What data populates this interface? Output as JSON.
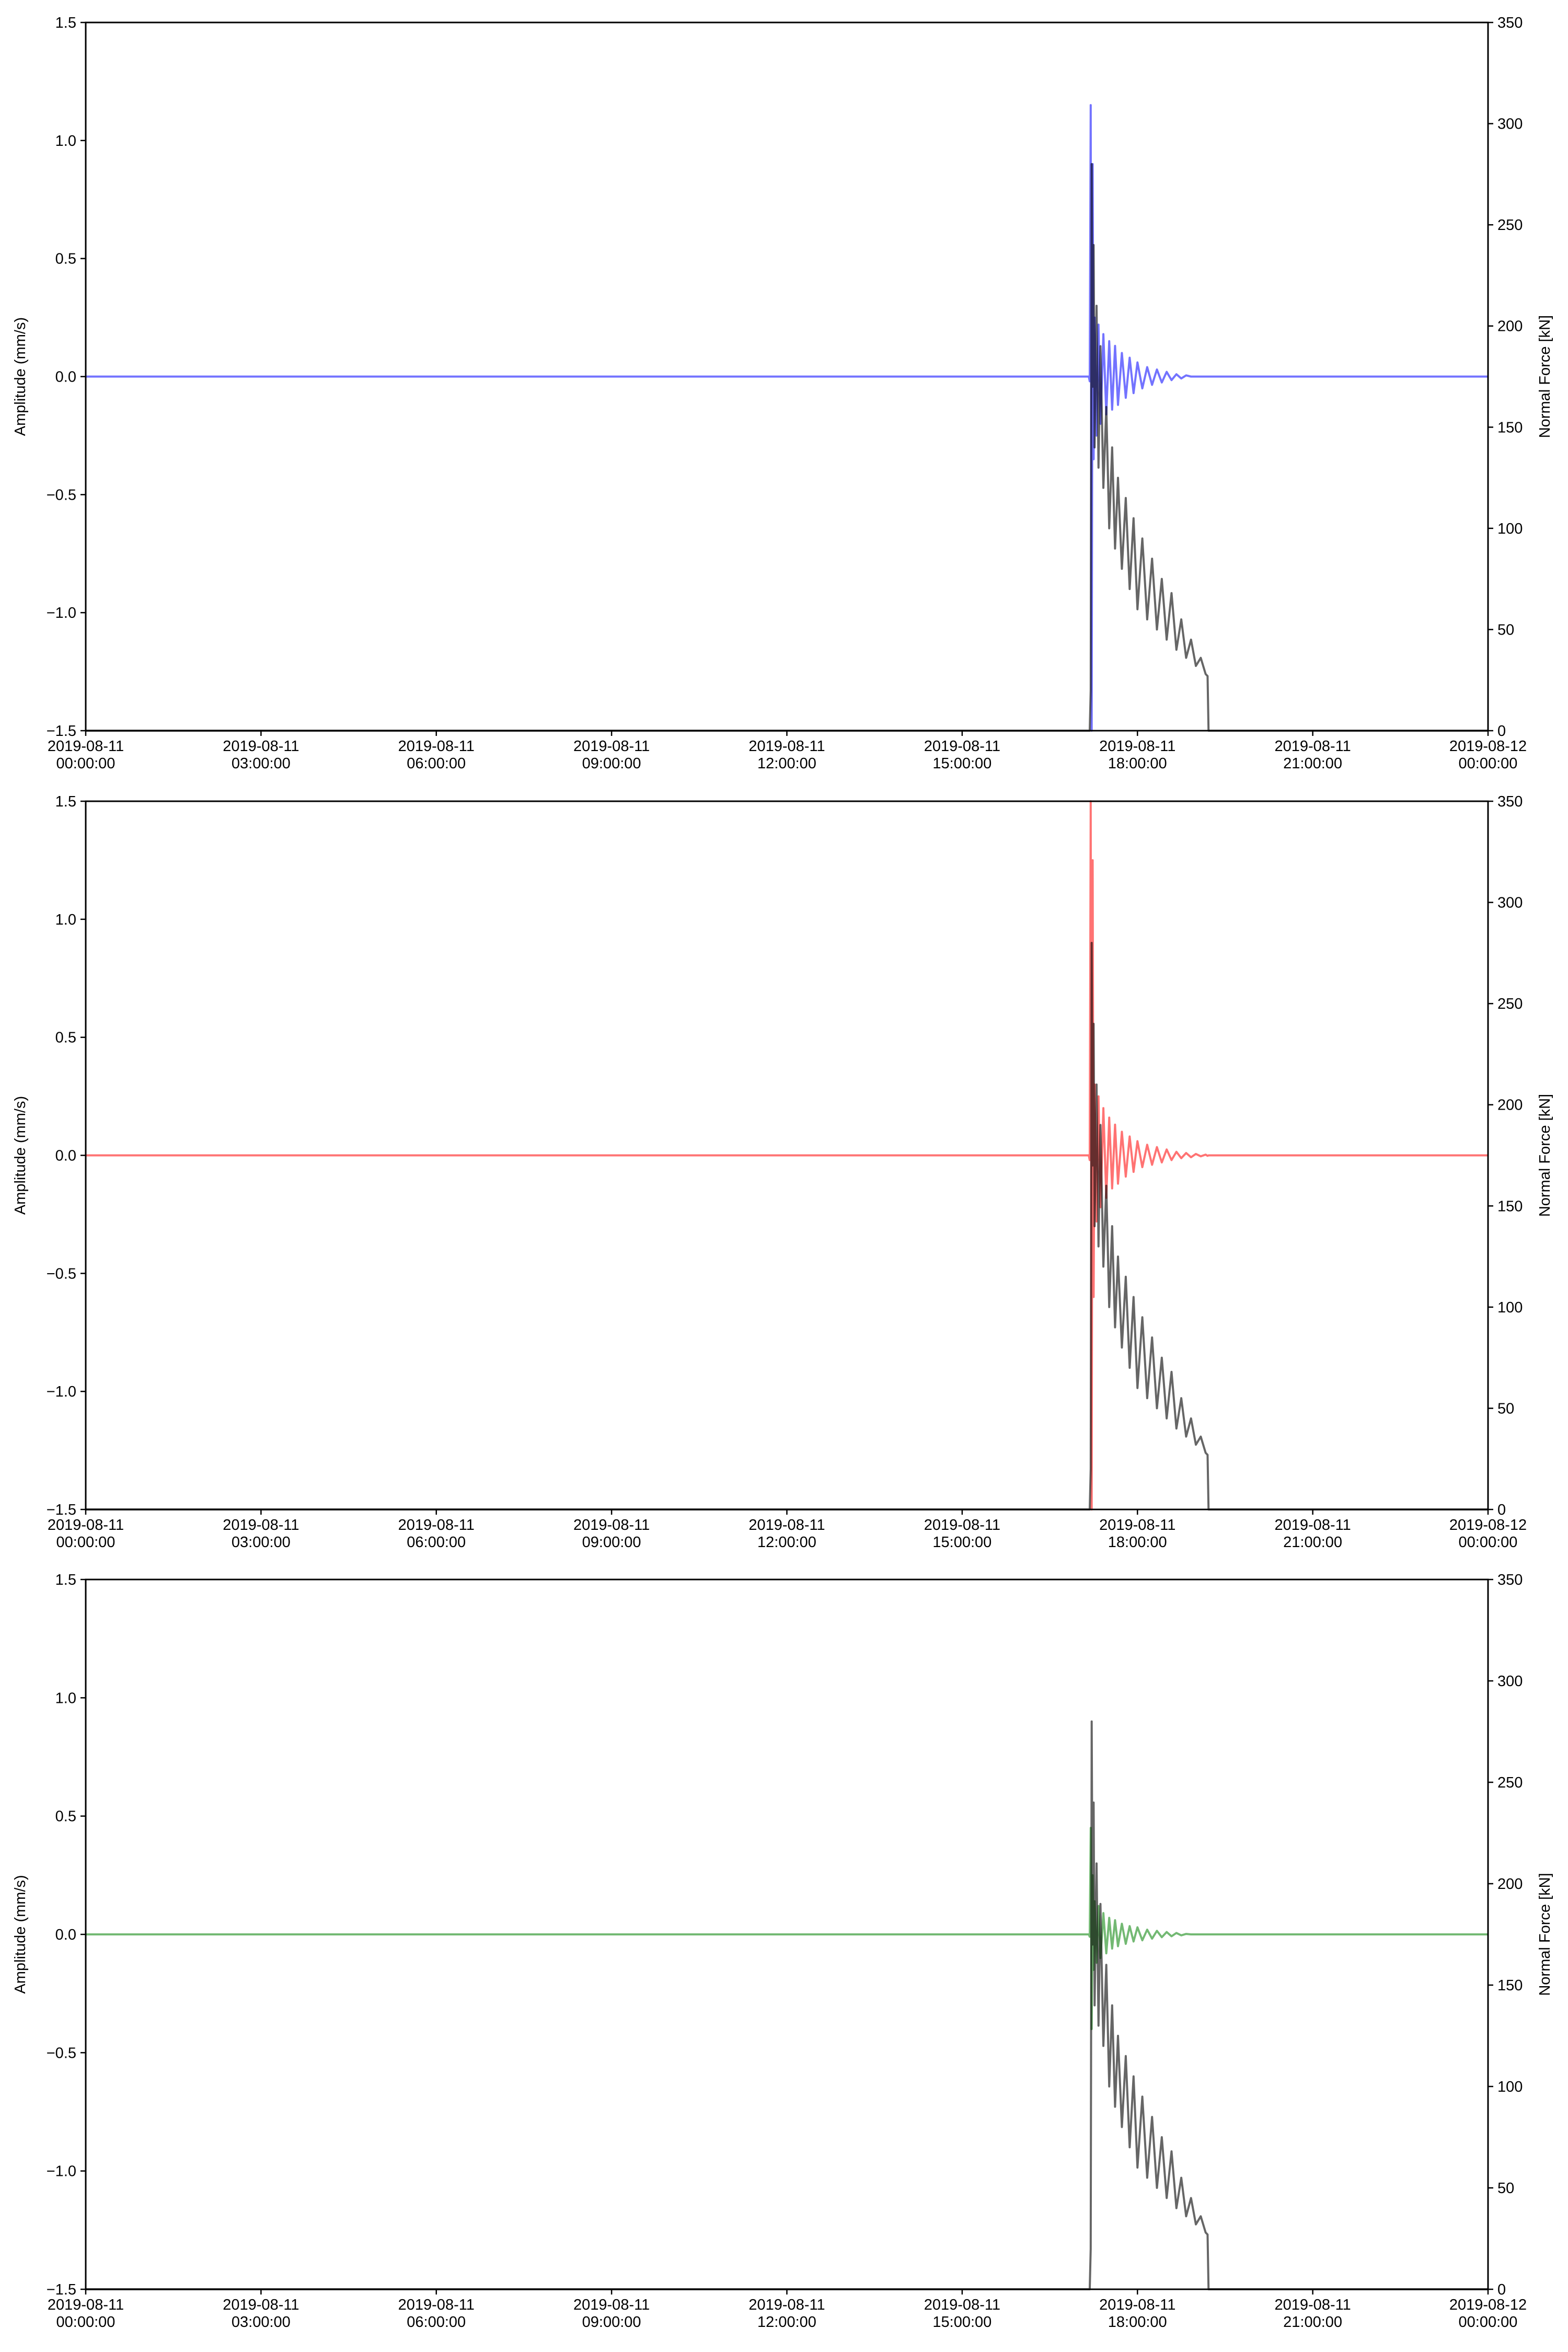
{
  "chart_data": [
    {
      "type": "line",
      "x": [
        "2019-08-11 00:00:00",
        "2019-08-11 03:00:00",
        "2019-08-11 06:00:00",
        "2019-08-11 09:00:00",
        "2019-08-11 12:00:00",
        "2019-08-11 15:00:00",
        "2019-08-11 17:00:00",
        "2019-08-11 17:08:00",
        "2019-08-11 17:10:00",
        "2019-08-11 17:11:00",
        "2019-08-11 17:12:00",
        "2019-08-11 17:13:00",
        "2019-08-11 17:14:00",
        "2019-08-11 17:15:00",
        "2019-08-11 17:16:00",
        "2019-08-11 17:18:00",
        "2019-08-11 17:20:00",
        "2019-08-11 17:22:00",
        "2019-08-11 17:25:00",
        "2019-08-11 17:28:00",
        "2019-08-11 17:31:00",
        "2019-08-11 17:34:00",
        "2019-08-11 17:37:00",
        "2019-08-11 17:40:00",
        "2019-08-11 17:44:00",
        "2019-08-11 17:48:00",
        "2019-08-11 17:52:00",
        "2019-08-11 17:56:00",
        "2019-08-11 18:00:00",
        "2019-08-11 18:05:00",
        "2019-08-11 18:10:00",
        "2019-08-11 18:15:00",
        "2019-08-11 18:20:00",
        "2019-08-11 18:25:00",
        "2019-08-11 18:30:00",
        "2019-08-11 18:35:00",
        "2019-08-11 18:40:00",
        "2019-08-11 18:45:00",
        "2019-08-11 18:50:00",
        "2019-08-11 18:55:00",
        "2019-08-11 19:00:00",
        "2019-08-11 19:05:00",
        "2019-08-11 19:10:00",
        "2019-08-11 19:12:00",
        "2019-08-11 19:13:00",
        "2019-08-11 19:20:00",
        "2019-08-11 19:30:00",
        "2019-08-11 19:45:00",
        "2019-08-11 20:00:00",
        "2019-08-11 21:00:00",
        "2019-08-12 00:00:00"
      ],
      "series": [
        {
          "color": "#0000ff",
          "values": [
            0,
            0,
            0,
            0,
            0,
            0,
            0,
            0,
            0,
            -0.02,
            1.15,
            -1.5,
            0.9,
            -0.35,
            0.25,
            -0.25,
            0.22,
            -0.2,
            0.18,
            -0.16,
            0.15,
            -0.14,
            0.13,
            -0.12,
            0.1,
            -0.09,
            0.08,
            -0.07,
            0.06,
            -0.05,
            0.04,
            -0.035,
            0.03,
            -0.025,
            0.02,
            -0.015,
            0.01,
            -0.008,
            0.005,
            0,
            0,
            0,
            0,
            0,
            0,
            0,
            0,
            0,
            0,
            0,
            0
          ]
        },
        {
          "color": "#000000",
          "axis": "y2",
          "values": [
            0,
            0,
            0,
            0,
            0,
            0,
            0,
            0,
            0,
            0,
            20,
            280,
            170,
            240,
            140,
            210,
            130,
            190,
            120,
            160,
            100,
            140,
            90,
            125,
            80,
            115,
            70,
            105,
            60,
            95,
            55,
            85,
            50,
            75,
            45,
            68,
            40,
            55,
            36,
            45,
            32,
            36,
            28,
            27,
            0,
            0,
            0,
            0,
            0,
            0,
            0
          ]
        }
      ],
      "xlim": [
        "2019-08-11 00:00:00",
        "2019-08-12 00:00:00"
      ],
      "xticks": [
        {
          "value": "2019-08-11 00:00:00",
          "label": "2019-08-11\n00:00:00"
        },
        {
          "value": "2019-08-11 03:00:00",
          "label": "2019-08-11\n03:00:00"
        },
        {
          "value": "2019-08-11 06:00:00",
          "label": "2019-08-11\n06:00:00"
        },
        {
          "value": "2019-08-11 09:00:00",
          "label": "2019-08-11\n09:00:00"
        },
        {
          "value": "2019-08-11 12:00:00",
          "label": "2019-08-11\n12:00:00"
        },
        {
          "value": "2019-08-11 15:00:00",
          "label": "2019-08-11\n15:00:00"
        },
        {
          "value": "2019-08-11 18:00:00",
          "label": "2019-08-11\n18:00:00"
        },
        {
          "value": "2019-08-11 21:00:00",
          "label": "2019-08-11\n21:00:00"
        },
        {
          "value": "2019-08-12 00:00:00",
          "label": "2019-08-12\n00:00:00"
        }
      ],
      "ylabel": "Amplitude (mm/s)",
      "y2label": "Normal Force [kN]",
      "ylim": [
        -1.5,
        1.5
      ],
      "yticks": [
        {
          "value": -1.5,
          "label": "−1.5"
        },
        {
          "value": -1,
          "label": "−1.0"
        },
        {
          "value": -0.5,
          "label": "−0.5"
        },
        {
          "value": 0,
          "label": "0.0"
        },
        0.5,
        {
          "value": 1,
          "label": "1.0"
        },
        1.5
      ],
      "y2lim": [
        0,
        350
      ],
      "y2ticks": [
        0,
        50,
        100,
        150,
        200,
        250,
        300,
        350
      ]
    },
    {
      "type": "line",
      "x": [
        "2019-08-11 00:00:00",
        "2019-08-11 03:00:00",
        "2019-08-11 06:00:00",
        "2019-08-11 09:00:00",
        "2019-08-11 12:00:00",
        "2019-08-11 15:00:00",
        "2019-08-11 17:00:00",
        "2019-08-11 17:08:00",
        "2019-08-11 17:10:00",
        "2019-08-11 17:11:00",
        "2019-08-11 17:12:00",
        "2019-08-11 17:13:00",
        "2019-08-11 17:14:00",
        "2019-08-11 17:15:00",
        "2019-08-11 17:16:00",
        "2019-08-11 17:18:00",
        "2019-08-11 17:20:00",
        "2019-08-11 17:22:00",
        "2019-08-11 17:25:00",
        "2019-08-11 17:28:00",
        "2019-08-11 17:31:00",
        "2019-08-11 17:34:00",
        "2019-08-11 17:37:00",
        "2019-08-11 17:40:00",
        "2019-08-11 17:44:00",
        "2019-08-11 17:48:00",
        "2019-08-11 17:52:00",
        "2019-08-11 17:56:00",
        "2019-08-11 18:00:00",
        "2019-08-11 18:05:00",
        "2019-08-11 18:10:00",
        "2019-08-11 18:15:00",
        "2019-08-11 18:20:00",
        "2019-08-11 18:25:00",
        "2019-08-11 18:30:00",
        "2019-08-11 18:35:00",
        "2019-08-11 18:40:00",
        "2019-08-11 18:45:00",
        "2019-08-11 18:50:00",
        "2019-08-11 18:55:00",
        "2019-08-11 19:00:00",
        "2019-08-11 19:05:00",
        "2019-08-11 19:10:00",
        "2019-08-11 19:12:00",
        "2019-08-11 19:13:00",
        "2019-08-11 19:20:00",
        "2019-08-11 19:30:00",
        "2019-08-11 19:45:00",
        "2019-08-11 20:00:00",
        "2019-08-11 21:00:00",
        "2019-08-12 00:00:00"
      ],
      "series": [
        {
          "color": "#ff0000",
          "values": [
            0,
            0,
            0,
            0,
            0,
            0,
            0,
            0,
            0,
            -0.02,
            1.5,
            -1.5,
            1.25,
            -0.6,
            0.3,
            -0.28,
            0.25,
            -0.22,
            0.2,
            -0.18,
            0.16,
            -0.14,
            0.13,
            -0.12,
            0.1,
            -0.09,
            0.08,
            -0.07,
            0.06,
            -0.05,
            0.045,
            -0.04,
            0.035,
            -0.03,
            0.025,
            -0.02,
            0.015,
            -0.012,
            0.01,
            -0.008,
            0.006,
            -0.004,
            0.003,
            -0.002,
            0,
            0,
            0,
            0,
            0,
            0,
            0
          ]
        },
        {
          "color": "#000000",
          "axis": "y2",
          "values": [
            0,
            0,
            0,
            0,
            0,
            0,
            0,
            0,
            0,
            0,
            20,
            280,
            170,
            240,
            140,
            210,
            130,
            190,
            120,
            160,
            100,
            140,
            90,
            125,
            80,
            115,
            70,
            105,
            60,
            95,
            55,
            85,
            50,
            75,
            45,
            68,
            40,
            55,
            36,
            45,
            32,
            36,
            28,
            27,
            0,
            0,
            0,
            0,
            0,
            0,
            0
          ]
        }
      ],
      "xlim": [
        "2019-08-11 00:00:00",
        "2019-08-12 00:00:00"
      ],
      "xticks": [
        {
          "value": "2019-08-11 00:00:00",
          "label": "2019-08-11\n00:00:00"
        },
        {
          "value": "2019-08-11 03:00:00",
          "label": "2019-08-11\n03:00:00"
        },
        {
          "value": "2019-08-11 06:00:00",
          "label": "2019-08-11\n06:00:00"
        },
        {
          "value": "2019-08-11 09:00:00",
          "label": "2019-08-11\n09:00:00"
        },
        {
          "value": "2019-08-11 12:00:00",
          "label": "2019-08-11\n12:00:00"
        },
        {
          "value": "2019-08-11 15:00:00",
          "label": "2019-08-11\n15:00:00"
        },
        {
          "value": "2019-08-11 18:00:00",
          "label": "2019-08-11\n18:00:00"
        },
        {
          "value": "2019-08-11 21:00:00",
          "label": "2019-08-11\n21:00:00"
        },
        {
          "value": "2019-08-12 00:00:00",
          "label": "2019-08-12\n00:00:00"
        }
      ],
      "ylabel": "Amplitude (mm/s)",
      "y2label": "Normal Force [kN]",
      "ylim": [
        -1.5,
        1.5
      ],
      "yticks": [
        {
          "value": -1.5,
          "label": "−1.5"
        },
        {
          "value": -1,
          "label": "−1.0"
        },
        {
          "value": -0.5,
          "label": "−0.5"
        },
        {
          "value": 0,
          "label": "0.0"
        },
        0.5,
        {
          "value": 1,
          "label": "1.0"
        },
        1.5
      ],
      "y2lim": [
        0,
        350
      ],
      "y2ticks": [
        0,
        50,
        100,
        150,
        200,
        250,
        300,
        350
      ]
    },
    {
      "type": "line",
      "x": [
        "2019-08-11 00:00:00",
        "2019-08-11 03:00:00",
        "2019-08-11 06:00:00",
        "2019-08-11 09:00:00",
        "2019-08-11 12:00:00",
        "2019-08-11 15:00:00",
        "2019-08-11 17:00:00",
        "2019-08-11 17:08:00",
        "2019-08-11 17:10:00",
        "2019-08-11 17:11:00",
        "2019-08-11 17:12:00",
        "2019-08-11 17:13:00",
        "2019-08-11 17:14:00",
        "2019-08-11 17:15:00",
        "2019-08-11 17:16:00",
        "2019-08-11 17:18:00",
        "2019-08-11 17:20:00",
        "2019-08-11 17:22:00",
        "2019-08-11 17:25:00",
        "2019-08-11 17:28:00",
        "2019-08-11 17:31:00",
        "2019-08-11 17:34:00",
        "2019-08-11 17:37:00",
        "2019-08-11 17:40:00",
        "2019-08-11 17:44:00",
        "2019-08-11 17:48:00",
        "2019-08-11 17:52:00",
        "2019-08-11 17:56:00",
        "2019-08-11 18:00:00",
        "2019-08-11 18:05:00",
        "2019-08-11 18:10:00",
        "2019-08-11 18:15:00",
        "2019-08-11 18:20:00",
        "2019-08-11 18:25:00",
        "2019-08-11 18:30:00",
        "2019-08-11 18:35:00",
        "2019-08-11 18:40:00",
        "2019-08-11 18:45:00",
        "2019-08-11 18:50:00",
        "2019-08-11 18:55:00",
        "2019-08-11 19:00:00",
        "2019-08-11 19:05:00",
        "2019-08-11 19:10:00",
        "2019-08-11 19:12:00",
        "2019-08-11 19:13:00",
        "2019-08-11 19:20:00",
        "2019-08-11 19:30:00",
        "2019-08-11 19:45:00",
        "2019-08-11 20:00:00",
        "2019-08-11 21:00:00",
        "2019-08-12 00:00:00"
      ],
      "series": [
        {
          "color": "#008000",
          "values": [
            0,
            0,
            0,
            0,
            0,
            0,
            0,
            0,
            0,
            -0.01,
            0.45,
            -0.4,
            0.25,
            -0.15,
            0.14,
            -0.12,
            0.12,
            -0.1,
            0.09,
            -0.08,
            0.07,
            -0.06,
            0.06,
            -0.05,
            0.045,
            -0.04,
            0.035,
            -0.03,
            0.03,
            -0.025,
            0.02,
            -0.018,
            0.015,
            -0.012,
            0.01,
            -0.008,
            0.006,
            -0.004,
            0.002,
            0,
            0,
            0,
            0,
            0,
            0,
            0,
            0,
            0,
            0,
            0,
            0
          ]
        },
        {
          "color": "#000000",
          "axis": "y2",
          "values": [
            0,
            0,
            0,
            0,
            0,
            0,
            0,
            0,
            0,
            0,
            20,
            280,
            170,
            240,
            140,
            210,
            130,
            190,
            120,
            160,
            100,
            140,
            90,
            125,
            80,
            115,
            70,
            105,
            60,
            95,
            55,
            85,
            50,
            75,
            45,
            68,
            40,
            55,
            36,
            45,
            32,
            36,
            28,
            27,
            0,
            0,
            0,
            0,
            0,
            0,
            0
          ]
        }
      ],
      "xlim": [
        "2019-08-11 00:00:00",
        "2019-08-12 00:00:00"
      ],
      "xticks": [
        {
          "value": "2019-08-11 00:00:00",
          "label": "2019-08-11\n00:00:00"
        },
        {
          "value": "2019-08-11 03:00:00",
          "label": "2019-08-11\n03:00:00"
        },
        {
          "value": "2019-08-11 06:00:00",
          "label": "2019-08-11\n06:00:00"
        },
        {
          "value": "2019-08-11 09:00:00",
          "label": "2019-08-11\n09:00:00"
        },
        {
          "value": "2019-08-11 12:00:00",
          "label": "2019-08-11\n12:00:00"
        },
        {
          "value": "2019-08-11 15:00:00",
          "label": "2019-08-11\n15:00:00"
        },
        {
          "value": "2019-08-11 18:00:00",
          "label": "2019-08-11\n18:00:00"
        },
        {
          "value": "2019-08-11 21:00:00",
          "label": "2019-08-11\n21:00:00"
        },
        {
          "value": "2019-08-12 00:00:00",
          "label": "2019-08-12\n00:00:00"
        }
      ],
      "ylabel": "Amplitude (mm/s)",
      "y2label": "Normal Force [kN]",
      "ylim": [
        -1.5,
        1.5
      ],
      "yticks": [
        {
          "value": -1.5,
          "label": "−1.5"
        },
        {
          "value": -1,
          "label": "−1.0"
        },
        {
          "value": -0.5,
          "label": "−0.5"
        },
        {
          "value": 0,
          "label": "0.0"
        },
        0.5,
        {
          "value": 1,
          "label": "1.0"
        },
        1.5
      ],
      "y2lim": [
        0,
        350
      ],
      "y2ticks": [
        0,
        50,
        100,
        150,
        200,
        250,
        300,
        350
      ]
    }
  ]
}
